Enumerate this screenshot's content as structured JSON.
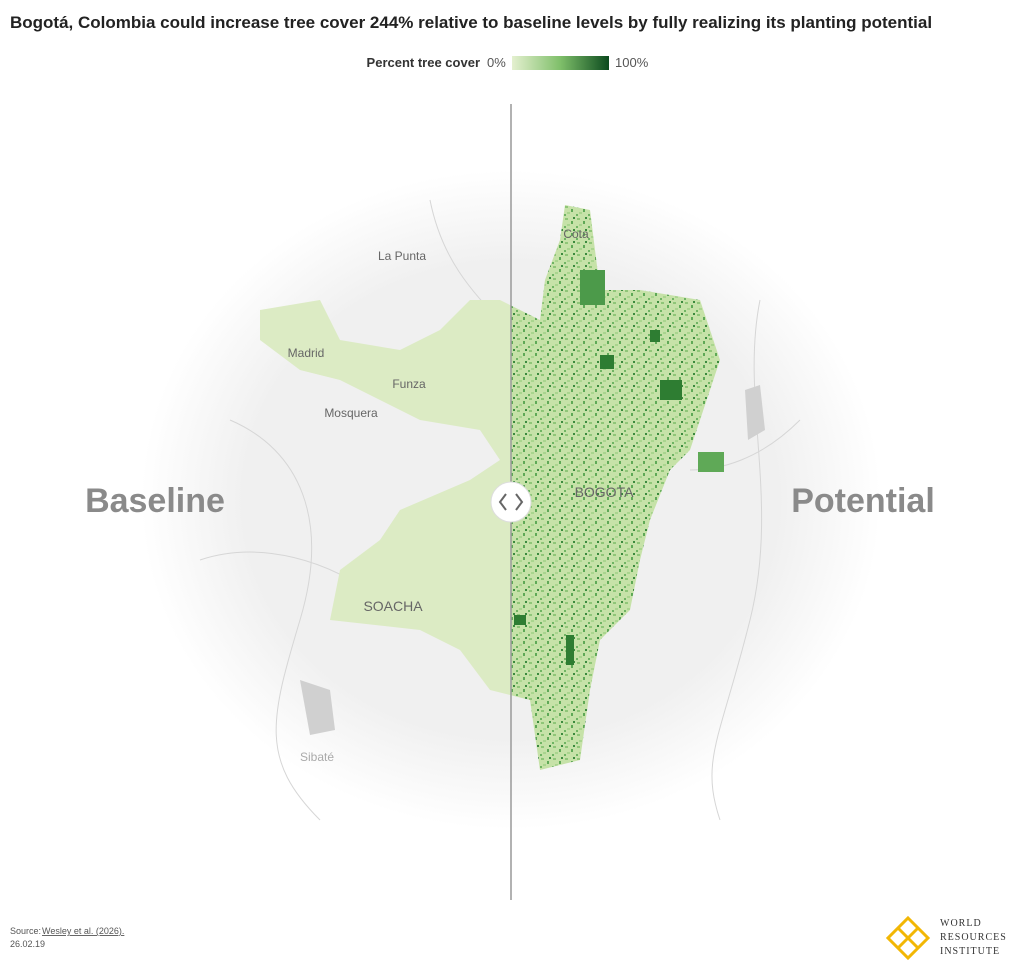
{
  "header": {
    "title": "Bogotá, Colombia could increase tree cover 244% relative to baseline levels by fully realizing its planting potential"
  },
  "legend": {
    "label": "Percent tree cover",
    "min_label": "0%",
    "max_label": "100%"
  },
  "map": {
    "sides": {
      "left": "Baseline",
      "right": "Potential"
    },
    "places": [
      "Cota",
      "La Punta",
      "Madrid",
      "Funza",
      "Mosquera",
      "BOGOTA",
      "SOACHA",
      "Sibaté"
    ]
  },
  "footer": {
    "source_prefix": "Source:",
    "source_link": "Wesley et al. (2026).",
    "date": "26.02.19"
  },
  "logo": {
    "lines": [
      "WORLD",
      "RESOURCES",
      "INSTITUTE"
    ]
  }
}
